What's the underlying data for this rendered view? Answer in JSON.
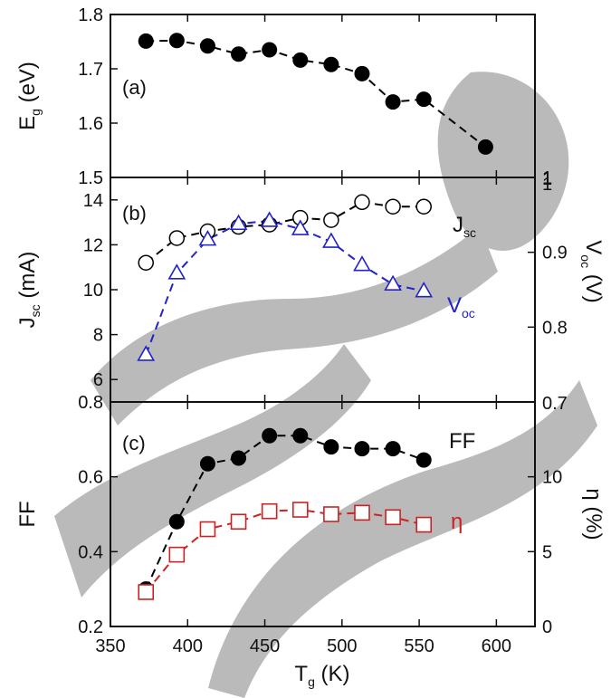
{
  "chart_data": [
    {
      "panel": "(a)",
      "type": "scatter",
      "x": [
        373,
        393,
        413,
        433,
        453,
        473,
        493,
        513,
        533,
        553,
        593
      ],
      "series": [
        {
          "name": "",
          "marker": "filled-circle",
          "color": "#000000",
          "values": [
            1.751,
            1.752,
            1.742,
            1.727,
            1.735,
            1.716,
            1.708,
            1.691,
            1.639,
            1.644,
            1.556
          ]
        }
      ],
      "xlim": [
        350,
        625
      ],
      "ylim": [
        1.5,
        1.8
      ],
      "yticks": [
        "1.5",
        "1.6",
        "1.7",
        "1.8"
      ],
      "ylabel_main": "E",
      "ylabel_sub": "g",
      "ylabel_unit": " (eV)"
    },
    {
      "panel": "(b)",
      "type": "scatter",
      "x": [
        373,
        393,
        413,
        433,
        453,
        473,
        493,
        513,
        533,
        553
      ],
      "series": [
        {
          "name": "J",
          "name_sub": "sc",
          "axis": "left",
          "marker": "open-circle",
          "color": "#000000",
          "values": [
            11.2,
            12.3,
            12.6,
            12.8,
            12.9,
            13.2,
            13.1,
            13.9,
            13.7,
            13.7
          ]
        },
        {
          "name": "V",
          "name_sub": "oc",
          "axis": "right",
          "marker": "open-triangle",
          "color": "#2222cc",
          "values": [
            0.763,
            0.872,
            0.917,
            0.938,
            0.942,
            0.931,
            0.914,
            0.883,
            0.857,
            0.848
          ]
        }
      ],
      "xlim": [
        350,
        625
      ],
      "ylim_left": [
        5,
        15
      ],
      "ylim_right": [
        0.7,
        1.0
      ],
      "yticks_left": [
        "6",
        "8",
        "10",
        "12",
        "14"
      ],
      "yticks_right": [
        "0.8",
        "0.9",
        "1"
      ],
      "ylabel_main": "J",
      "ylabel_sub": "sc",
      "ylabel_unit": " (mA)",
      "y2label_main": "V",
      "y2label_sub": "oc",
      "y2label_unit": " (V)"
    },
    {
      "panel": "(c)",
      "type": "scatter",
      "x": [
        373,
        393,
        413,
        433,
        453,
        473,
        493,
        513,
        533,
        553
      ],
      "series": [
        {
          "name": "FF",
          "axis": "left",
          "marker": "filled-circle",
          "color": "#000000",
          "values": [
            0.3,
            0.48,
            0.635,
            0.65,
            0.71,
            0.71,
            0.68,
            0.675,
            0.675,
            0.645
          ]
        },
        {
          "name": "η",
          "axis": "right",
          "marker": "open-square",
          "color": "#cc2222",
          "values": [
            2.3,
            4.8,
            6.5,
            7.0,
            7.7,
            7.8,
            7.5,
            7.6,
            7.3,
            6.8
          ]
        }
      ],
      "xlim": [
        350,
        625
      ],
      "ylim_left": [
        0.2,
        0.8
      ],
      "ylim_right": [
        0,
        15
      ],
      "yticks_left": [
        "0.2",
        "0.4",
        "0.6",
        "0.8"
      ],
      "yticks_right": [
        "0",
        "5",
        "10"
      ],
      "ylabel": "FF",
      "y2label": "η (%)",
      "xticks": [
        "350",
        "400",
        "450",
        "500",
        "550",
        "600"
      ],
      "xlabel_main": "T",
      "xlabel_sub": "g",
      "xlabel_unit": " (K)"
    }
  ],
  "extra_tick_labels": {
    "panel_a_right_top": "1",
    "panel_b_right_top": "1",
    "panel_c_right_top": "0.7"
  },
  "colors": {
    "blue": "#2222cc",
    "red": "#cc2222",
    "watermark": "#b3b3b3"
  }
}
